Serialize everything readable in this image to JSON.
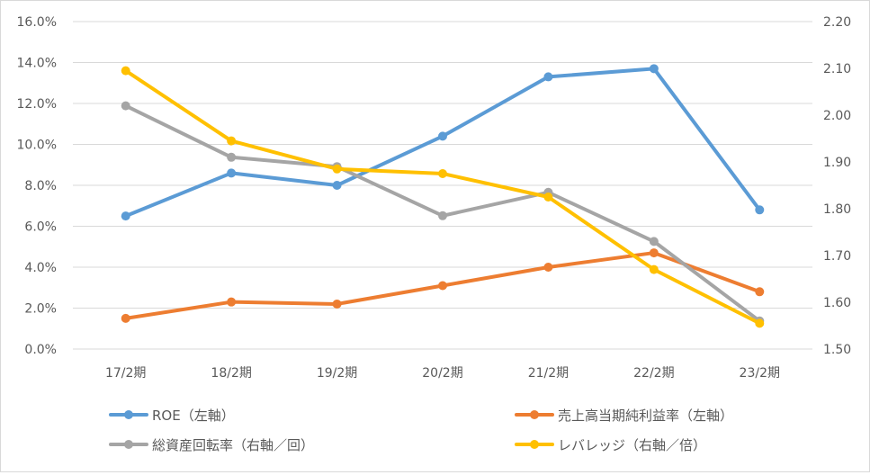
{
  "chart_data": {
    "type": "line",
    "categories": [
      "17/2期",
      "18/2期",
      "19/2期",
      "20/2期",
      "21/2期",
      "22/2期",
      "23/2期"
    ],
    "y_left": {
      "min": 0,
      "max": 16,
      "step": 2,
      "tick_labels": [
        "0.0%",
        "2.0%",
        "4.0%",
        "6.0%",
        "8.0%",
        "10.0%",
        "12.0%",
        "14.0%",
        "16.0%"
      ]
    },
    "y_right": {
      "min": 1.5,
      "max": 2.2,
      "step": 0.1,
      "tick_labels": [
        "1.50",
        "1.60",
        "1.70",
        "1.80",
        "1.90",
        "2.00",
        "2.10",
        "2.20"
      ]
    },
    "gridlines": true,
    "legend_position": "bottom",
    "series": [
      {
        "name": "ROE（左軸）",
        "axis": "left",
        "color": "#5B9BD5",
        "values": [
          6.5,
          8.6,
          8.0,
          10.4,
          13.3,
          13.7,
          6.8
        ]
      },
      {
        "name": "売上高当期純利益率（左軸）",
        "axis": "left",
        "color": "#ED7D31",
        "values": [
          1.5,
          2.3,
          2.2,
          3.1,
          4.0,
          4.7,
          2.8
        ]
      },
      {
        "name": "総資産回転率（右軸／回）",
        "axis": "right",
        "color": "#A5A5A5",
        "values": [
          2.02,
          1.91,
          1.89,
          1.785,
          1.835,
          1.73,
          1.56
        ]
      },
      {
        "name": "レバレッジ（右軸／倍）",
        "axis": "right",
        "color": "#FFC000",
        "values": [
          2.095,
          1.945,
          1.885,
          1.875,
          1.825,
          1.67,
          1.555
        ]
      }
    ]
  }
}
